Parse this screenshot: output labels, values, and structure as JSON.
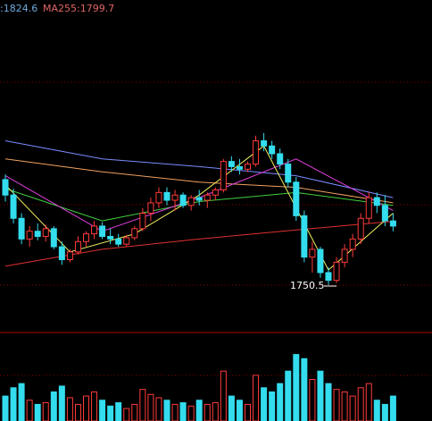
{
  "chart_data": {
    "type": "candlestick",
    "header_texts": [
      {
        "text": ":1824.6",
        "color": "#6fa8dc"
      },
      {
        "text": "MA255:1799.7",
        "color": "#e06666"
      }
    ],
    "annotation": "1750.5",
    "up_color": "#ff3b3b",
    "down_color": "#33ddee",
    "ylim": [
      1715,
      1971
    ],
    "volume_lim": [
      0,
      100
    ],
    "candles": [
      [
        1832,
        1836,
        1815,
        1820
      ],
      [
        1820,
        1825,
        1798,
        1802
      ],
      [
        1802,
        1806,
        1782,
        1786
      ],
      [
        1786,
        1796,
        1780,
        1792
      ],
      [
        1792,
        1798,
        1785,
        1788
      ],
      [
        1788,
        1797,
        1784,
        1794
      ],
      [
        1794,
        1796,
        1778,
        1780
      ],
      [
        1780,
        1784,
        1766,
        1770
      ],
      [
        1770,
        1778,
        1768,
        1776
      ],
      [
        1776,
        1788,
        1774,
        1784
      ],
      [
        1784,
        1792,
        1780,
        1790
      ],
      [
        1790,
        1800,
        1786,
        1796
      ],
      [
        1796,
        1799,
        1786,
        1788
      ],
      [
        1788,
        1794,
        1782,
        1786
      ],
      [
        1786,
        1790,
        1780,
        1782
      ],
      [
        1782,
        1789,
        1780,
        1787
      ],
      [
        1787,
        1796,
        1785,
        1794
      ],
      [
        1794,
        1810,
        1792,
        1806
      ],
      [
        1806,
        1818,
        1800,
        1814
      ],
      [
        1814,
        1826,
        1810,
        1822
      ],
      [
        1822,
        1826,
        1812,
        1816
      ],
      [
        1816,
        1824,
        1808,
        1820
      ],
      [
        1820,
        1822,
        1810,
        1812
      ],
      [
        1812,
        1820,
        1808,
        1818
      ],
      [
        1818,
        1824,
        1812,
        1816
      ],
      [
        1816,
        1822,
        1810,
        1820
      ],
      [
        1820,
        1826,
        1816,
        1824
      ],
      [
        1824,
        1848,
        1822,
        1846
      ],
      [
        1846,
        1850,
        1838,
        1842
      ],
      [
        1842,
        1848,
        1836,
        1840
      ],
      [
        1840,
        1846,
        1838,
        1844
      ],
      [
        1844,
        1866,
        1842,
        1862
      ],
      [
        1862,
        1868,
        1854,
        1858
      ],
      [
        1858,
        1862,
        1848,
        1852
      ],
      [
        1852,
        1856,
        1840,
        1844
      ],
      [
        1844,
        1848,
        1826,
        1830
      ],
      [
        1830,
        1834,
        1800,
        1804
      ],
      [
        1804,
        1808,
        1768,
        1772
      ],
      [
        1772,
        1784,
        1760,
        1778
      ],
      [
        1778,
        1780,
        1756,
        1760
      ],
      [
        1760,
        1764,
        1750.5,
        1754
      ],
      [
        1754,
        1772,
        1752,
        1768
      ],
      [
        1768,
        1782,
        1764,
        1778
      ],
      [
        1778,
        1790,
        1772,
        1786
      ],
      [
        1786,
        1806,
        1782,
        1802
      ],
      [
        1802,
        1822,
        1798,
        1818
      ],
      [
        1818,
        1822,
        1806,
        1812
      ],
      [
        1812,
        1820,
        1796,
        1800
      ],
      [
        1800,
        1806,
        1792,
        1796
      ]
    ],
    "volumes": [
      30,
      40,
      45,
      25,
      20,
      22,
      35,
      42,
      28,
      20,
      30,
      35,
      25,
      18,
      22,
      15,
      20,
      38,
      32,
      28,
      25,
      20,
      22,
      18,
      25,
      20,
      22,
      60,
      30,
      25,
      20,
      55,
      40,
      35,
      45,
      60,
      80,
      75,
      50,
      60,
      45,
      38,
      35,
      30,
      40,
      45,
      25,
      20,
      30
    ],
    "ma_series": [
      {
        "color": "#7a8cff",
        "x": [
          0,
          12,
          24,
          36,
          48
        ],
        "values": [
          1862,
          1848,
          1842,
          1835,
          1818
        ]
      },
      {
        "color": "#f0a060",
        "x": [
          0,
          12,
          24,
          36,
          48
        ],
        "values": [
          1848,
          1838,
          1830,
          1826,
          1814
        ]
      },
      {
        "color": "#e03030",
        "x": [
          0,
          12,
          24,
          36,
          48
        ],
        "values": [
          1765,
          1778,
          1786,
          1793,
          1799.7
        ]
      },
      {
        "color": "#40d040",
        "x": [
          0,
          12,
          24,
          36,
          48
        ],
        "values": [
          1825,
          1800,
          1815,
          1822,
          1812
        ]
      },
      {
        "color": "#e040e0",
        "x": [
          0,
          12,
          24,
          36,
          48
        ],
        "values": [
          1835,
          1792,
          1818,
          1848,
          1808
        ]
      },
      {
        "color": "#f0f060",
        "x": [
          0,
          8,
          16,
          24,
          32,
          40,
          48
        ],
        "values": [
          1828,
          1776,
          1790,
          1820,
          1858,
          1762,
          1806
        ]
      }
    ]
  }
}
